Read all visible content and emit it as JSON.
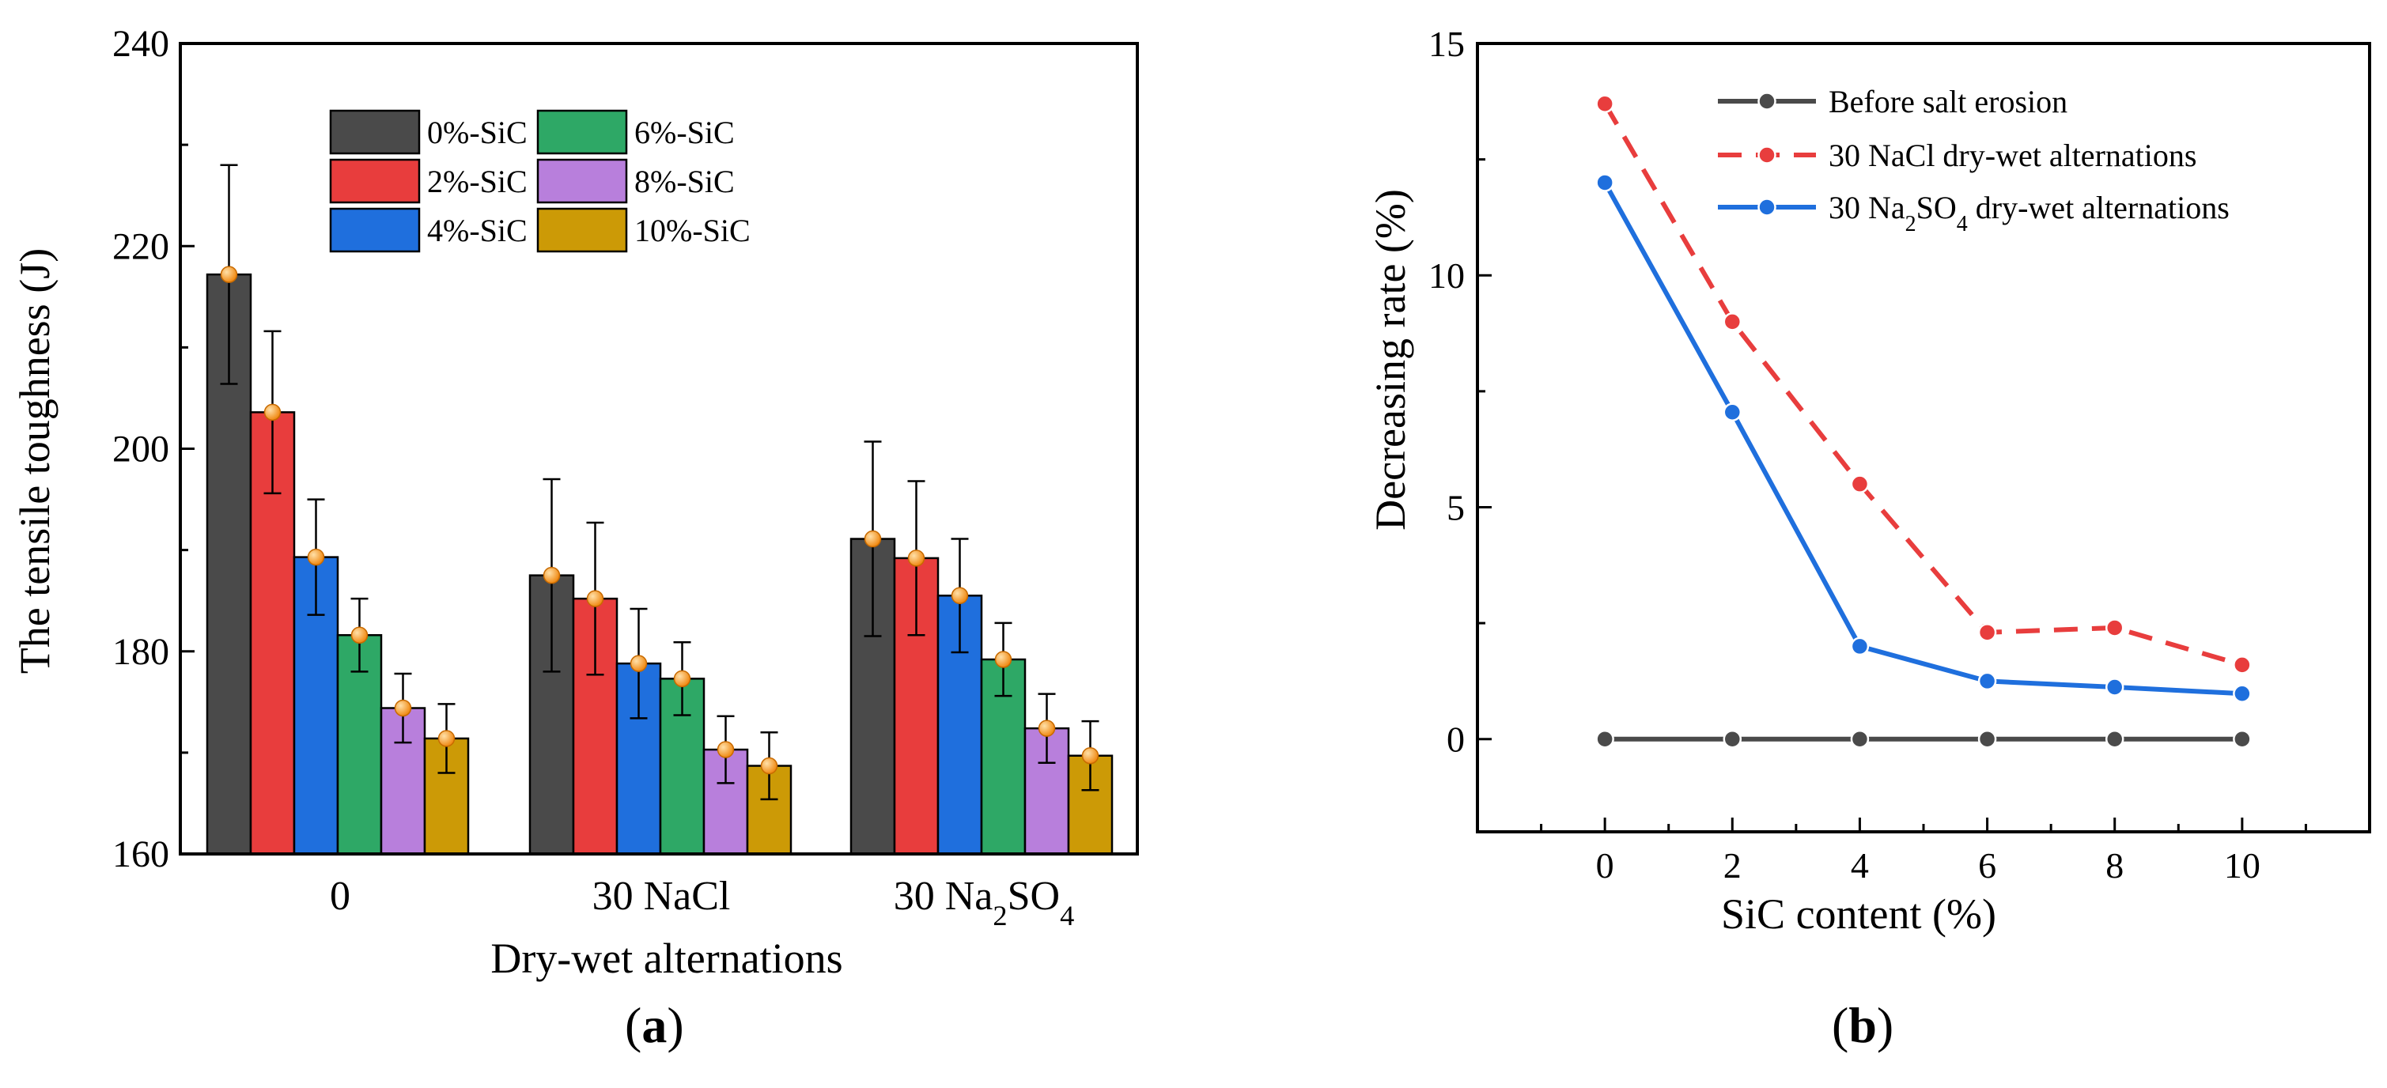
{
  "chart_data": [
    {
      "type": "bar",
      "panel_label": "a",
      "title": "",
      "xlabel": "Dry-wet alternations",
      "ylabel": "The tensile toughness (J)",
      "ylim": [
        160,
        240
      ],
      "yticks": [
        160,
        180,
        200,
        220,
        240
      ],
      "categories": [
        {
          "text": "0",
          "sub": "",
          "tail": ""
        },
        {
          "text": "30 NaCl",
          "sub": "",
          "tail": ""
        },
        {
          "text": "30 Na",
          "sub": "2",
          "tail": "SO",
          "sub2": "4"
        }
      ],
      "error_bars": true,
      "legend_position": "top-center",
      "series": [
        {
          "name": "0%-SiC",
          "color": "#4a4a4a",
          "values": [
            217.2,
            187.5,
            191.1
          ],
          "errors": [
            10.8,
            9.5,
            9.6
          ]
        },
        {
          "name": "2%-SiC",
          "color": "#e83d3d",
          "values": [
            203.6,
            185.2,
            189.2
          ],
          "errors": [
            8.0,
            7.5,
            7.6
          ]
        },
        {
          "name": "4%-SiC",
          "color": "#1f6fdd",
          "values": [
            189.3,
            178.8,
            185.5
          ],
          "errors": [
            5.7,
            5.4,
            5.6
          ]
        },
        {
          "name": "6%-SiC",
          "color": "#2ea866",
          "values": [
            181.6,
            177.3,
            179.2
          ],
          "errors": [
            3.6,
            3.6,
            3.6
          ]
        },
        {
          "name": "8%-SiC",
          "color": "#b87fdc",
          "values": [
            174.4,
            170.3,
            172.4
          ],
          "errors": [
            3.4,
            3.3,
            3.4
          ]
        },
        {
          "name": "10%-SiC",
          "color": "#cc9a06",
          "values": [
            171.4,
            168.7,
            169.7
          ],
          "errors": [
            3.4,
            3.3,
            3.4
          ]
        }
      ]
    },
    {
      "type": "line",
      "panel_label": "b",
      "title": "",
      "xlabel": "SiC content (%)",
      "ylabel": "Decreasing rate (%)",
      "xlim": [
        -2,
        12
      ],
      "ylim": [
        -2,
        15
      ],
      "xticks": [
        0,
        2,
        4,
        6,
        8,
        10
      ],
      "yticks": [
        0,
        5,
        10,
        15
      ],
      "legend_position": "top-center",
      "x": [
        0,
        2,
        4,
        6,
        8,
        10
      ],
      "series": [
        {
          "name": "Before salt erosion",
          "color": "#4a4a4a",
          "dashed": false,
          "values": [
            0,
            0,
            0,
            0,
            0,
            0
          ]
        },
        {
          "name": "30 NaCl dry-wet alternations",
          "color": "#e83d3d",
          "dashed": true,
          "values": [
            13.7,
            9.0,
            5.5,
            2.3,
            2.4,
            1.6
          ]
        },
        {
          "name": "30 Na2SO4 dry-wet alternations",
          "color": "#1f6fdd",
          "dashed": false,
          "values": [
            12.0,
            7.05,
            2.0,
            1.25,
            1.12,
            0.98
          ],
          "label_parts": {
            "pre": "30 Na",
            "sub": "2",
            "mid": "SO",
            "sub2": "4",
            "post": " dry-wet alternations"
          }
        }
      ]
    }
  ]
}
